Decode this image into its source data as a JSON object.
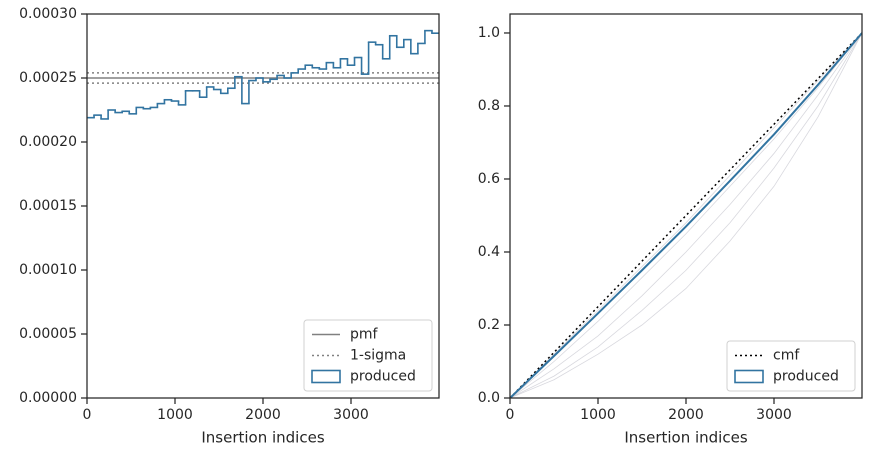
{
  "chart_data": [
    {
      "type": "histogram",
      "xlabel": "Insertion indices",
      "name": "produced",
      "color": "#3274a1",
      "bins": [
        0,
        80,
        160,
        240,
        320,
        400,
        480,
        560,
        640,
        720,
        800,
        880,
        960,
        1040,
        1120,
        1200,
        1280,
        1360,
        1440,
        1520,
        1600,
        1680,
        1760,
        1840,
        1920,
        2000,
        2080,
        2160,
        2240,
        2320,
        2400,
        2480,
        2560,
        2640,
        2720,
        2800,
        2880,
        2960,
        3040,
        3120,
        3200,
        3280,
        3360,
        3440,
        3520,
        3600,
        3680,
        3760,
        3840,
        3920,
        4000
      ],
      "values": [
        0.000219,
        0.000221,
        0.000218,
        0.000225,
        0.000223,
        0.000224,
        0.000222,
        0.000227,
        0.000226,
        0.000227,
        0.00023,
        0.000233,
        0.000232,
        0.000229,
        0.00024,
        0.00024,
        0.000235,
        0.000243,
        0.000241,
        0.000238,
        0.000242,
        0.000251,
        0.00023,
        0.000248,
        0.00025,
        0.000247,
        0.000249,
        0.000252,
        0.00025,
        0.000254,
        0.000257,
        0.00026,
        0.000258,
        0.000257,
        0.000262,
        0.000258,
        0.000265,
        0.00026,
        0.000266,
        0.000253,
        0.000278,
        0.000276,
        0.000265,
        0.000283,
        0.000274,
        0.00028,
        0.000269,
        0.000277,
        0.000287,
        0.000285
      ],
      "hlines": [
        {
          "name": "pmf",
          "color": "#808080",
          "dash": "solid",
          "values": [
            0.00025
          ]
        },
        {
          "name": "1-sigma",
          "color": "#808080",
          "dash": "dotted",
          "values": [
            0.000246,
            0.000254
          ]
        }
      ],
      "xlim": [
        0,
        4000
      ],
      "xticks": [
        0,
        1000,
        2000,
        3000
      ],
      "ylim": [
        0,
        0.0003
      ],
      "yticks": [
        {
          "value": 0,
          "label": "0.00000"
        },
        {
          "value": 5e-05,
          "label": "0.00005"
        },
        {
          "value": 0.0001,
          "label": "0.00010"
        },
        {
          "value": 0.00015,
          "label": "0.00015"
        },
        {
          "value": 0.0002,
          "label": "0.00020"
        },
        {
          "value": 0.00025,
          "label": "0.00025"
        },
        {
          "value": 0.0003,
          "label": "0.00030"
        }
      ],
      "legend": "lower right"
    },
    {
      "type": "line",
      "xlabel": "Insertion indices",
      "x": [
        0,
        500,
        1000,
        1500,
        2000,
        2500,
        3000,
        3500,
        4000
      ],
      "background_lines": {
        "color": "#c8c8d0",
        "series": [
          [
            0,
            0.1,
            0.21,
            0.33,
            0.45,
            0.58,
            0.71,
            0.85,
            1.0
          ],
          [
            0,
            0.08,
            0.17,
            0.28,
            0.4,
            0.53,
            0.67,
            0.83,
            1.0
          ],
          [
            0,
            0.06,
            0.14,
            0.24,
            0.35,
            0.48,
            0.63,
            0.8,
            1.0
          ],
          [
            0,
            0.12,
            0.24,
            0.36,
            0.48,
            0.61,
            0.74,
            0.87,
            1.0
          ],
          [
            0,
            0.05,
            0.12,
            0.2,
            0.3,
            0.43,
            0.58,
            0.77,
            1.0
          ]
        ]
      },
      "series": [
        {
          "name": "cmf",
          "color": "#000000",
          "dash": "dotted",
          "legend_style": "line",
          "values": [
            0,
            0.125,
            0.25,
            0.375,
            0.5,
            0.625,
            0.75,
            0.875,
            1.0
          ]
        },
        {
          "name": "produced",
          "color": "#3274a1",
          "dash": "solid",
          "legend_style": "box",
          "values": [
            0,
            0.115,
            0.232,
            0.35,
            0.47,
            0.595,
            0.722,
            0.858,
            1.0
          ]
        }
      ],
      "xlim": [
        0,
        4000
      ],
      "xticks": [
        0,
        1000,
        2000,
        3000
      ],
      "ylim": [
        0,
        1.052
      ],
      "yticks": [
        {
          "value": 0,
          "label": "0.0"
        },
        {
          "value": 0.2,
          "label": "0.2"
        },
        {
          "value": 0.4,
          "label": "0.4"
        },
        {
          "value": 0.6,
          "label": "0.6"
        },
        {
          "value": 0.8,
          "label": "0.8"
        },
        {
          "value": 1.0,
          "label": "1.0"
        }
      ],
      "legend": "lower right"
    }
  ]
}
